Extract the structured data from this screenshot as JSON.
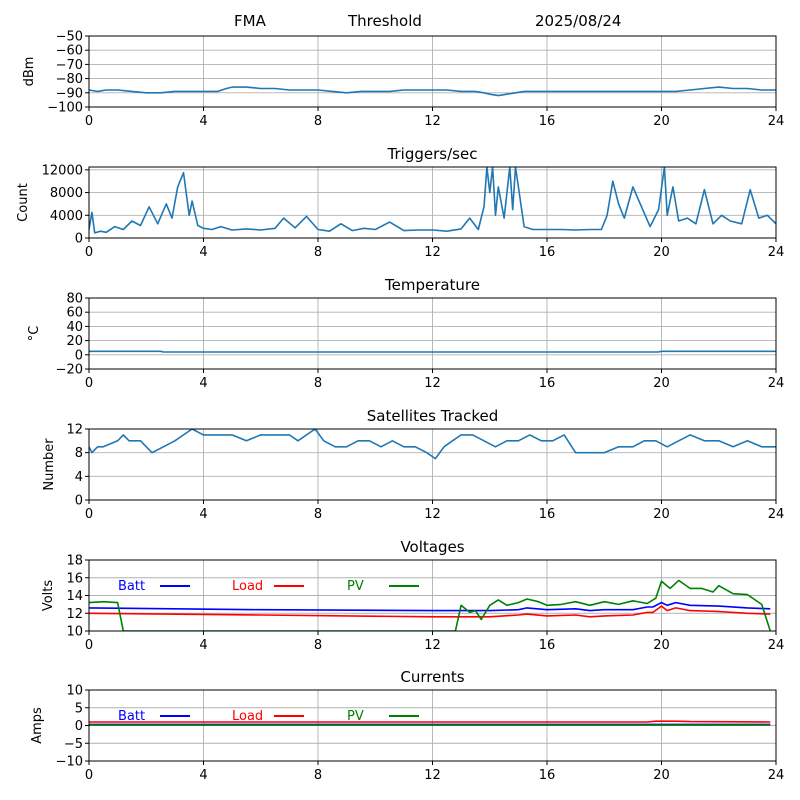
{
  "header": {
    "station": "FMA",
    "mode": "Threshold",
    "date": "2025/08/24"
  },
  "colors": {
    "series_default": "#1f77b4",
    "batt": "#0000ff",
    "load": "#ff0000",
    "pv": "#008000",
    "grid": "#b0b0b0"
  },
  "chart_data": [
    {
      "id": "signal",
      "type": "line",
      "title": "",
      "xlabel": "",
      "ylabel": "dBm",
      "xlim": [
        0,
        24
      ],
      "ylim": [
        -100,
        -50
      ],
      "xticks": [
        0,
        4,
        8,
        12,
        16,
        20,
        24
      ],
      "yticks": [
        -100,
        -90,
        -80,
        -70,
        -60,
        -50
      ],
      "grid": true,
      "series": [
        {
          "color": "#1f77b4",
          "x": [
            0,
            0.3,
            0.6,
            1.0,
            1.5,
            2.0,
            2.5,
            3.0,
            3.5,
            4.0,
            4.5,
            4.8,
            5.0,
            5.5,
            6.0,
            6.5,
            7.0,
            7.5,
            8.0,
            8.5,
            9.0,
            9.5,
            10.0,
            10.5,
            11.0,
            11.5,
            12.0,
            12.5,
            13.0,
            13.5,
            13.8,
            14.0,
            14.3,
            14.6,
            14.9,
            15.2,
            15.5,
            16.0,
            16.5,
            17.0,
            17.5,
            18.0,
            18.5,
            19.0,
            19.5,
            20.0,
            20.5,
            21.0,
            21.5,
            22.0,
            22.5,
            23.0,
            23.5,
            24.0
          ],
          "y": [
            -88,
            -89,
            -88,
            -88,
            -89,
            -90,
            -90,
            -89,
            -89,
            -89,
            -89,
            -87,
            -86,
            -86,
            -87,
            -87,
            -88,
            -88,
            -88,
            -89,
            -90,
            -89,
            -89,
            -89,
            -88,
            -88,
            -88,
            -88,
            -89,
            -89,
            -90,
            -91,
            -92,
            -91,
            -90,
            -89,
            -89,
            -89,
            -89,
            -89,
            -89,
            -89,
            -89,
            -89,
            -89,
            -89,
            -89,
            -88,
            -87,
            -86,
            -87,
            -87,
            -88,
            -88
          ]
        }
      ]
    },
    {
      "id": "triggers",
      "type": "line",
      "title": "Triggers/sec",
      "xlabel": "",
      "ylabel": "Count",
      "xlim": [
        0,
        24
      ],
      "ylim": [
        0,
        12500
      ],
      "xticks": [
        0,
        4,
        8,
        12,
        16,
        20,
        24
      ],
      "yticks": [
        0,
        4000,
        8000,
        12000
      ],
      "grid": true,
      "series": [
        {
          "color": "#1f77b4",
          "x": [
            0,
            0.1,
            0.2,
            0.4,
            0.6,
            0.9,
            1.2,
            1.5,
            1.8,
            2.1,
            2.4,
            2.7,
            2.9,
            3.1,
            3.3,
            3.5,
            3.6,
            3.8,
            4.0,
            4.3,
            4.6,
            5.0,
            5.5,
            6.0,
            6.5,
            6.8,
            7.2,
            7.6,
            8.0,
            8.4,
            8.8,
            9.2,
            9.6,
            10.0,
            10.5,
            11.0,
            11.5,
            12.0,
            12.5,
            13.0,
            13.3,
            13.6,
            13.8,
            13.9,
            14.0,
            14.1,
            14.2,
            14.3,
            14.5,
            14.7,
            14.8,
            14.9,
            15.0,
            15.2,
            15.5,
            16.0,
            16.5,
            17.0,
            17.5,
            17.9,
            18.1,
            18.3,
            18.5,
            18.7,
            19.0,
            19.3,
            19.6,
            19.9,
            20.1,
            20.2,
            20.4,
            20.6,
            20.9,
            21.2,
            21.5,
            21.8,
            22.1,
            22.4,
            22.8,
            23.1,
            23.4,
            23.7,
            24.0
          ],
          "y": [
            1500,
            4500,
            900,
            1200,
            1000,
            2000,
            1500,
            3000,
            2200,
            5500,
            2500,
            6000,
            3500,
            9000,
            11500,
            4000,
            6500,
            2200,
            1700,
            1500,
            2000,
            1400,
            1600,
            1400,
            1700,
            3500,
            1800,
            3800,
            1500,
            1200,
            2500,
            1300,
            1700,
            1500,
            2800,
            1300,
            1400,
            1400,
            1200,
            1600,
            3500,
            1500,
            5500,
            12500,
            8000,
            12500,
            4000,
            9000,
            3500,
            12500,
            5000,
            12500,
            9000,
            2000,
            1500,
            1500,
            1500,
            1400,
            1500,
            1500,
            4000,
            10000,
            6000,
            3500,
            9000,
            5500,
            2000,
            5000,
            12500,
            4000,
            9000,
            3000,
            3500,
            2500,
            8500,
            2500,
            4000,
            3000,
            2500,
            8500,
            3500,
            4000,
            2500
          ]
        }
      ]
    },
    {
      "id": "temperature",
      "type": "line",
      "title": "Temperature",
      "xlabel": "",
      "ylabel": "°C",
      "xlim": [
        0,
        24
      ],
      "ylim": [
        -20,
        80
      ],
      "xticks": [
        0,
        4,
        8,
        12,
        16,
        20,
        24
      ],
      "yticks": [
        -20,
        0,
        20,
        40,
        60,
        80
      ],
      "grid": true,
      "series": [
        {
          "color": "#1f77b4",
          "x": [
            0,
            2.5,
            2.6,
            19.9,
            20.0,
            24.0
          ],
          "y": [
            5,
            5,
            4,
            4,
            5,
            5
          ]
        }
      ]
    },
    {
      "id": "satellites",
      "type": "line",
      "title": "Satellites Tracked",
      "xlabel": "",
      "ylabel": "Number",
      "xlim": [
        0,
        24
      ],
      "ylim": [
        0,
        12
      ],
      "xticks": [
        0,
        4,
        8,
        12,
        16,
        20,
        24
      ],
      "yticks": [
        0,
        4,
        8,
        12
      ],
      "grid": true,
      "series": [
        {
          "color": "#1f77b4",
          "x": [
            0,
            0.1,
            0.3,
            0.5,
            1.0,
            1.2,
            1.4,
            1.8,
            2.2,
            2.6,
            3.0,
            3.3,
            3.6,
            4.0,
            4.5,
            5.0,
            5.5,
            6.0,
            6.5,
            7.0,
            7.3,
            7.6,
            7.9,
            8.2,
            8.6,
            9.0,
            9.4,
            9.8,
            10.2,
            10.6,
            11.0,
            11.4,
            11.8,
            12.1,
            12.4,
            12.7,
            13.0,
            13.4,
            13.8,
            14.2,
            14.6,
            15.0,
            15.4,
            15.8,
            16.2,
            16.6,
            17.0,
            17.5,
            18.0,
            18.5,
            19.0,
            19.4,
            19.8,
            20.2,
            20.6,
            21.0,
            21.5,
            22.0,
            22.5,
            23.0,
            23.5,
            24.0
          ],
          "y": [
            9,
            8,
            9,
            9,
            10,
            11,
            10,
            10,
            8,
            9,
            10,
            11,
            12,
            11,
            11,
            11,
            10,
            11,
            11,
            11,
            10,
            11,
            12,
            10,
            9,
            9,
            10,
            10,
            9,
            10,
            9,
            9,
            8,
            7,
            9,
            10,
            11,
            11,
            10,
            9,
            10,
            10,
            11,
            10,
            10,
            11,
            8,
            8,
            8,
            9,
            9,
            10,
            10,
            9,
            10,
            11,
            10,
            10,
            9,
            10,
            9,
            9
          ]
        }
      ]
    },
    {
      "id": "voltages",
      "type": "line",
      "title": "Voltages",
      "xlabel": "",
      "ylabel": "Volts",
      "xlim": [
        0,
        24
      ],
      "ylim": [
        10,
        18
      ],
      "xticks": [
        0,
        4,
        8,
        12,
        16,
        20,
        24
      ],
      "yticks": [
        10,
        12,
        14,
        16,
        18
      ],
      "grid": true,
      "legend": "top-left, horizontal",
      "series": [
        {
          "name": "Batt",
          "color": "#0000ff",
          "x": [
            0,
            6,
            12,
            14,
            15,
            15.3,
            16,
            17,
            17.5,
            18,
            19,
            19.5,
            19.7,
            20,
            20.2,
            20.5,
            21,
            22,
            23,
            23.8
          ],
          "y": [
            12.6,
            12.4,
            12.3,
            12.3,
            12.4,
            12.6,
            12.4,
            12.5,
            12.3,
            12.4,
            12.4,
            12.7,
            12.7,
            13.2,
            12.9,
            13.2,
            12.9,
            12.8,
            12.6,
            12.5
          ]
        },
        {
          "name": "Load",
          "color": "#ff0000",
          "x": [
            0,
            6,
            12,
            14,
            15,
            15.3,
            16,
            17,
            17.5,
            18,
            19,
            19.5,
            19.7,
            20,
            20.2,
            20.5,
            21,
            22,
            23,
            23.8
          ],
          "y": [
            12.0,
            11.8,
            11.6,
            11.6,
            11.8,
            11.9,
            11.7,
            11.8,
            11.6,
            11.7,
            11.8,
            12.1,
            12.1,
            12.8,
            12.3,
            12.6,
            12.3,
            12.2,
            12.0,
            11.9
          ]
        },
        {
          "name": "PV",
          "color": "#008000",
          "x": [
            0,
            0.5,
            1.0,
            1.2,
            12.8,
            13.0,
            13.3,
            13.5,
            13.7,
            14.0,
            14.3,
            14.6,
            15.0,
            15.3,
            15.7,
            16.0,
            16.5,
            17.0,
            17.5,
            18.0,
            18.5,
            19.0,
            19.5,
            19.8,
            20.0,
            20.3,
            20.6,
            21.0,
            21.4,
            21.8,
            22.0,
            22.5,
            23.0,
            23.5,
            23.8
          ],
          "y": [
            13.2,
            13.3,
            13.2,
            10.0,
            10.0,
            12.9,
            12.1,
            12.3,
            11.3,
            12.9,
            13.5,
            12.9,
            13.2,
            13.6,
            13.3,
            12.9,
            13.0,
            13.3,
            12.9,
            13.3,
            13.0,
            13.4,
            13.1,
            13.7,
            15.6,
            14.8,
            15.7,
            14.8,
            14.8,
            14.4,
            15.1,
            14.2,
            14.1,
            13.0,
            10.0
          ]
        }
      ]
    },
    {
      "id": "currents",
      "type": "line",
      "title": "Currents",
      "xlabel": "",
      "ylabel": "Amps",
      "xlim": [
        0,
        24
      ],
      "ylim": [
        -10,
        10
      ],
      "xticks": [
        0,
        4,
        8,
        12,
        16,
        20,
        24
      ],
      "yticks": [
        -10,
        -5,
        0,
        5,
        10
      ],
      "grid": true,
      "legend": "top-left, horizontal",
      "series": [
        {
          "name": "Batt",
          "color": "#0000ff",
          "x": [
            0,
            23.8
          ],
          "y": [
            0.3,
            0.3
          ]
        },
        {
          "name": "Load",
          "color": "#ff0000",
          "x": [
            0,
            19.5,
            19.8,
            20.5,
            21,
            23.8
          ],
          "y": [
            1.0,
            1.0,
            1.2,
            1.2,
            1.1,
            1.0
          ]
        },
        {
          "name": "PV",
          "color": "#008000",
          "x": [
            0,
            23.8
          ],
          "y": [
            0.1,
            0.1
          ]
        }
      ]
    }
  ]
}
